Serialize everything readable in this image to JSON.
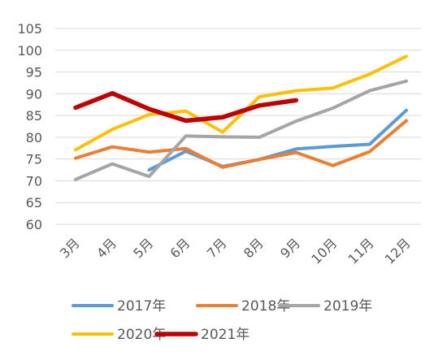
{
  "chart_data": {
    "type": "line",
    "title": "",
    "xlabel": "",
    "ylabel": "",
    "categories": [
      "3月",
      "4月",
      "5月",
      "6月",
      "7月",
      "8月",
      "9月",
      "10月",
      "11月",
      "12月"
    ],
    "ylim": [
      60,
      105
    ],
    "yticks": [
      "60",
      "65",
      "70",
      "75",
      "80",
      "85",
      "90",
      "95",
      "100",
      "105"
    ],
    "grid": true,
    "legend_position": "bottom",
    "series": [
      {
        "name": "2017年",
        "color": "#5B9BD5",
        "values": [
          null,
          null,
          72.5,
          76.8,
          73.3,
          74.9,
          77.3,
          77.9,
          78.4,
          86.2
        ]
      },
      {
        "name": "2018年",
        "color": "#ED7D31",
        "values": [
          75.2,
          77.8,
          76.6,
          77.4,
          73.1,
          74.9,
          76.5,
          73.5,
          76.7,
          83.8
        ]
      },
      {
        "name": "2019年",
        "color": "#A5A5A5",
        "values": [
          70.3,
          73.9,
          71.0,
          80.3,
          80.1,
          80.0,
          83.7,
          86.7,
          90.7,
          92.9
        ]
      },
      {
        "name": "2020年",
        "color": "#FFC000",
        "values": [
          77.1,
          81.8,
          85.2,
          86.0,
          81.2,
          89.3,
          90.7,
          91.3,
          94.5,
          98.6
        ]
      },
      {
        "name": "2021年",
        "color": "#C00000",
        "values": [
          86.8,
          90.1,
          86.5,
          83.8,
          84.6,
          87.3,
          88.5,
          null,
          null,
          null
        ]
      }
    ]
  }
}
